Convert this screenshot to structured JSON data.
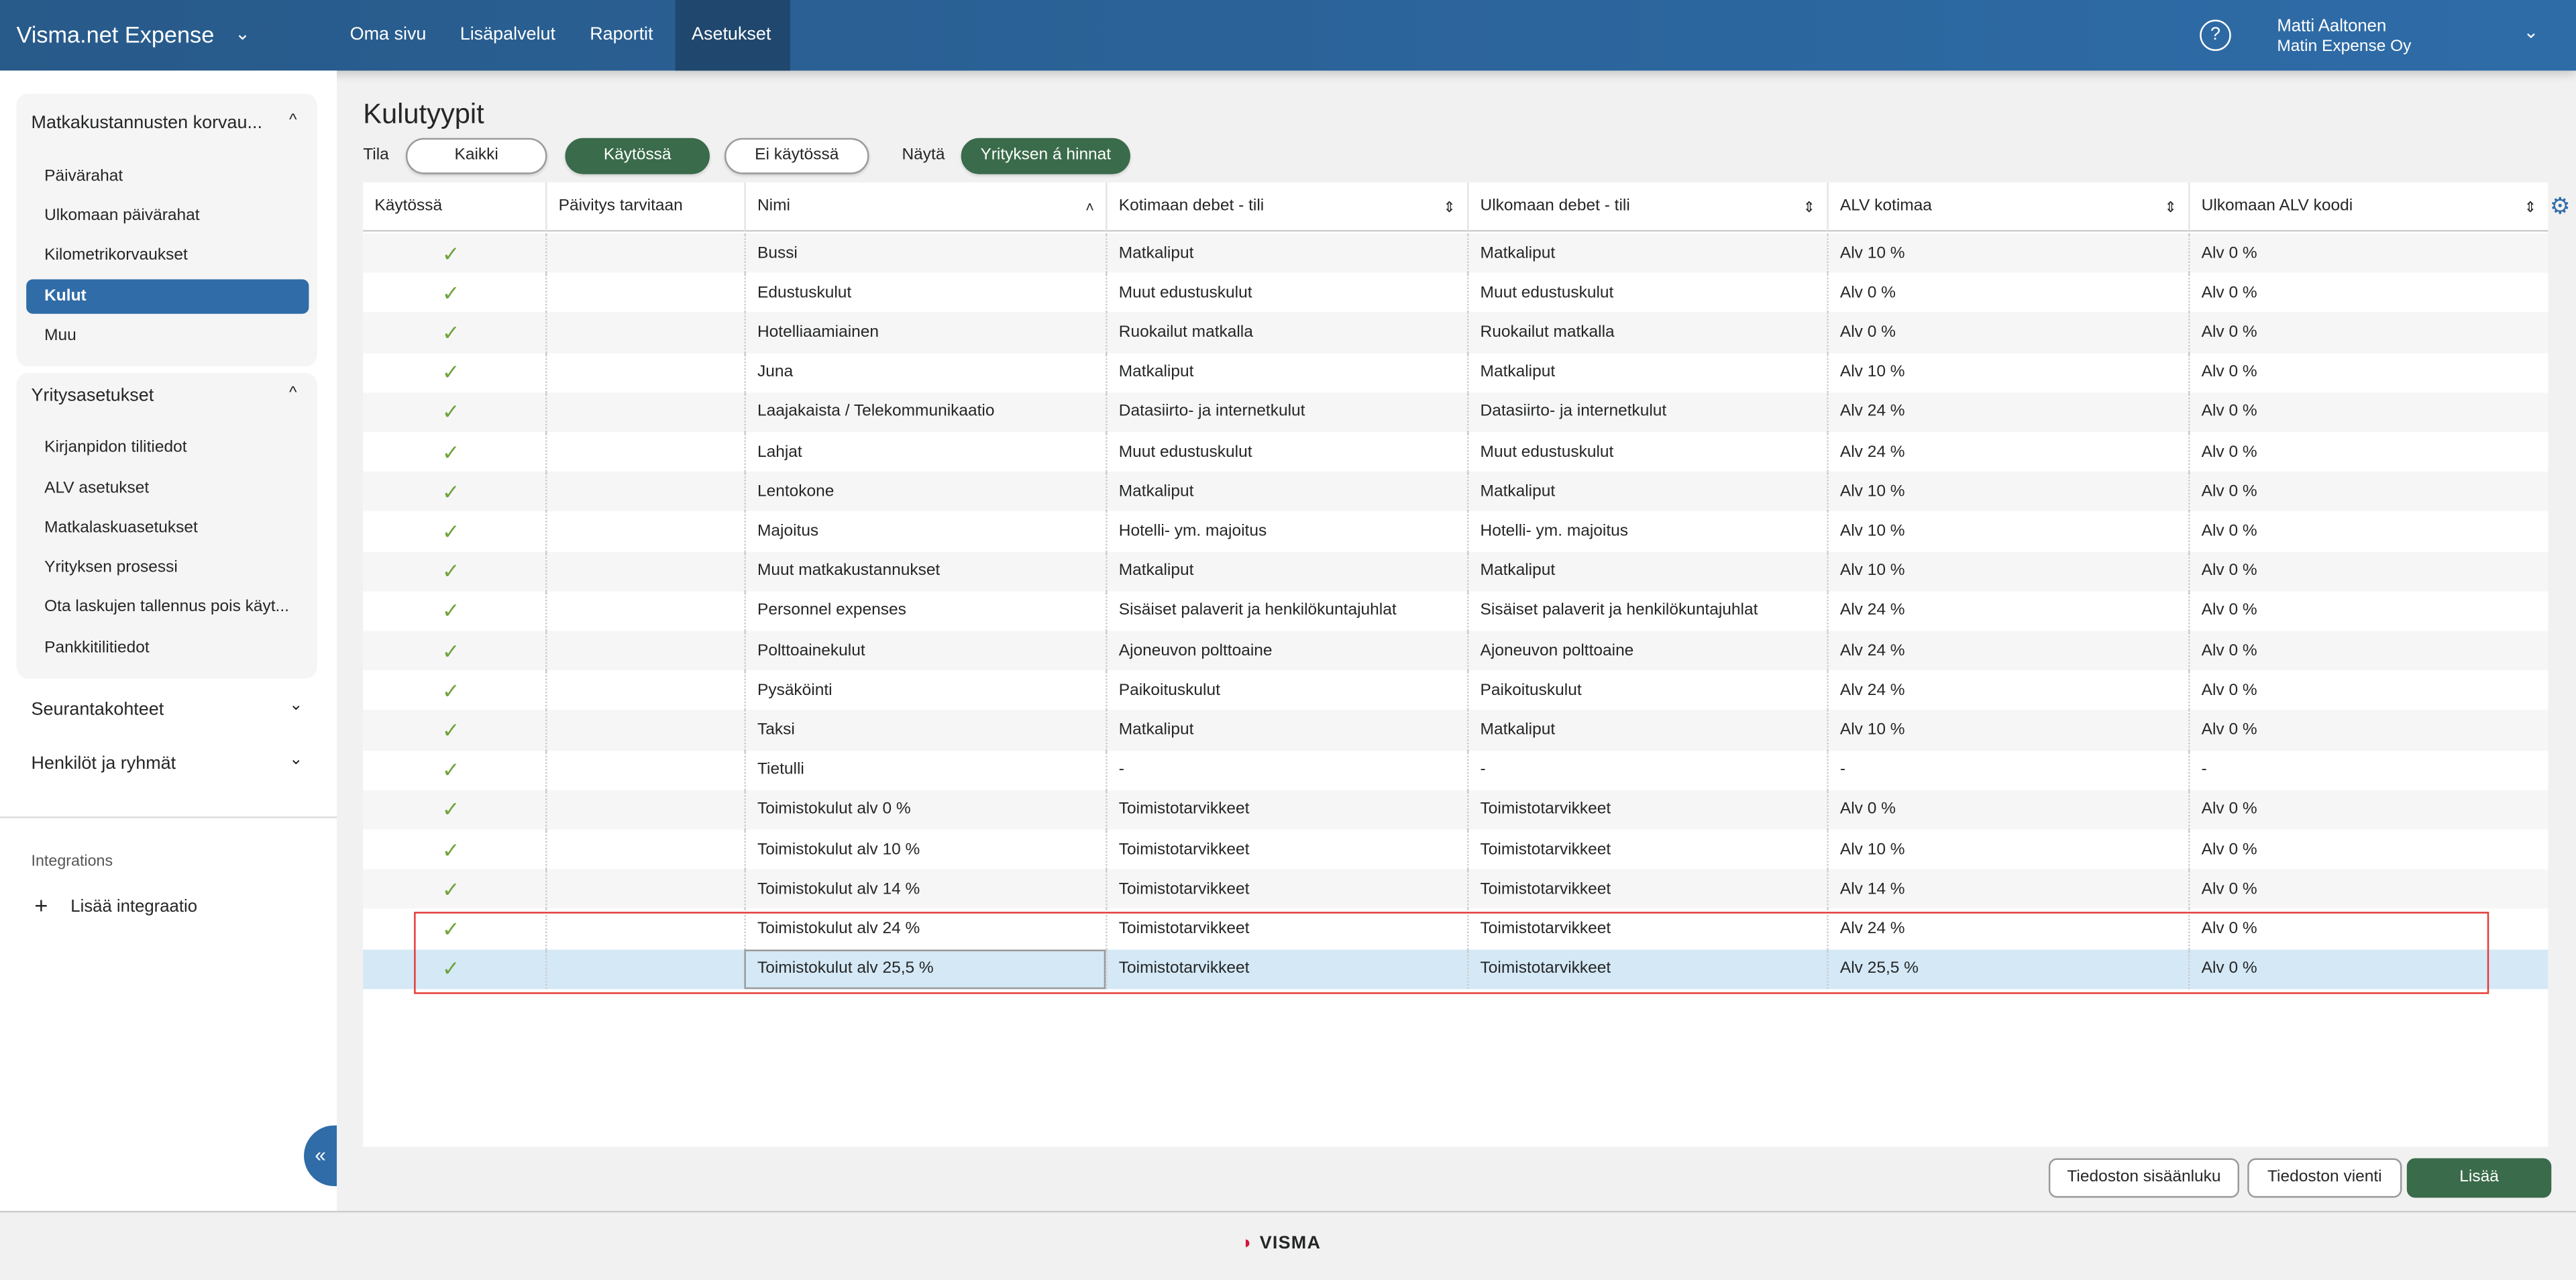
{
  "header": {
    "brand": "Visma.net Expense",
    "nav": [
      "Oma sivu",
      "Lisäpalvelut",
      "Raportit",
      "Asetukset"
    ],
    "active_nav": "Asetukset",
    "user_name": "Matti Aaltonen",
    "company": "Matin Expense Oy",
    "brand_color": "#2a5f91"
  },
  "sidebar": {
    "groups": [
      {
        "title": "Matkakustannusten korvau...",
        "expanded": true,
        "items": [
          "Päivärahat",
          "Ulkomaan päivärahat",
          "Kilometrikorvaukset",
          "Kulut",
          "Muu"
        ],
        "active": "Kulut"
      },
      {
        "title": "Yritysasetukset",
        "expanded": true,
        "items": [
          "Kirjanpidon tilitiedot",
          "ALV asetukset",
          "Matkalaskuasetukset",
          "Yrityksen prosessi",
          "Ota laskujen tallennus pois käyt...",
          "Pankkitilitiedot"
        ]
      },
      {
        "title": "Seurantakohteet",
        "expanded": false
      },
      {
        "title": "Henkilöt ja ryhmät",
        "expanded": false
      }
    ],
    "integrations_label": "Integrations",
    "add_integration": "Lisää integraatio"
  },
  "main": {
    "title": "Kulutyypit",
    "filter": {
      "tila_label": "Tila",
      "options": [
        "Kaikki",
        "Käytössä",
        "Ei käytössä"
      ],
      "selected": "Käytössä",
      "nayta_label": "Näytä",
      "nayta_toggle": "Yrityksen á hinnat"
    },
    "table": {
      "columns": [
        "Käytössä",
        "Päivitys tarvitaan",
        "Nimi",
        "Kotimaan debet - tili",
        "Ulkomaan debet - tili",
        "ALV kotimaa",
        "Ulkomaan ALV koodi"
      ],
      "rows": [
        [
          "Bussi",
          "Matkaliput",
          "Matkaliput",
          "Alv 10 %",
          "Alv 0 %"
        ],
        [
          "Edustuskulut",
          "Muut edustuskulut",
          "Muut edustuskulut",
          "Alv 0 %",
          "Alv 0 %"
        ],
        [
          "Hotelliaamiainen",
          "Ruokailut matkalla",
          "Ruokailut matkalla",
          "Alv 0 %",
          "Alv 0 %"
        ],
        [
          "Juna",
          "Matkaliput",
          "Matkaliput",
          "Alv 10 %",
          "Alv 0 %"
        ],
        [
          "Laajakaista / Telekommunikaatio",
          "Datasiirto- ja internetkulut",
          "Datasiirto- ja internetkulut",
          "Alv 24 %",
          "Alv 0 %"
        ],
        [
          "Lahjat",
          "Muut edustuskulut",
          "Muut edustuskulut",
          "Alv 24 %",
          "Alv 0 %"
        ],
        [
          "Lentokone",
          "Matkaliput",
          "Matkaliput",
          "Alv 10 %",
          "Alv 0 %"
        ],
        [
          "Majoitus",
          "Hotelli- ym. majoitus",
          "Hotelli- ym. majoitus",
          "Alv 10 %",
          "Alv 0 %"
        ],
        [
          "Muut matkakustannukset",
          "Matkaliput",
          "Matkaliput",
          "Alv 10 %",
          "Alv 0 %"
        ],
        [
          "Personnel expenses",
          "Sisäiset palaverit ja henkilökuntajuhlat",
          "Sisäiset palaverit ja henkilökuntajuhlat",
          "Alv 24 %",
          "Alv 0 %"
        ],
        [
          "Polttoainekulut",
          "Ajoneuvon polttoaine",
          "Ajoneuvon polttoaine",
          "Alv 24 %",
          "Alv 0 %"
        ],
        [
          "Pysäköinti",
          "Paikoituskulut",
          "Paikoituskulut",
          "Alv 24 %",
          "Alv 0 %"
        ],
        [
          "Taksi",
          "Matkaliput",
          "Matkaliput",
          "Alv 10 %",
          "Alv 0 %"
        ],
        [
          "Tietulli",
          "-",
          "-",
          "-",
          "-"
        ],
        [
          "Toimistokulut alv 0 %",
          "Toimistotarvikkeet",
          "Toimistotarvikkeet",
          "Alv 0 %",
          "Alv 0 %"
        ],
        [
          "Toimistokulut alv 10 %",
          "Toimistotarvikkeet",
          "Toimistotarvikkeet",
          "Alv 10 %",
          "Alv 0 %"
        ],
        [
          "Toimistokulut alv 14 %",
          "Toimistotarvikkeet",
          "Toimistotarvikkeet",
          "Alv 14 %",
          "Alv 0 %"
        ],
        [
          "Toimistokulut alv 24 %",
          "Toimistotarvikkeet",
          "Toimistotarvikkeet",
          "Alv 24 %",
          "Alv 0 %"
        ],
        [
          "Toimistokulut alv 25,5 %",
          "Toimistotarvikkeet",
          "Toimistotarvikkeet",
          "Alv 25,5 %",
          "Alv 0 %"
        ]
      ],
      "selected_row": "Toimistokulut alv 25,5 %"
    },
    "buttons": {
      "import": "Tiedoston sisäänluku",
      "export": "Tiedoston vienti",
      "add": "Lisää"
    }
  },
  "footer": {
    "logo": "VISMA"
  },
  "colors": {
    "green": "#3a6b4a",
    "active_blue": "#2f6ca8",
    "selected_row": "#d4e8f6",
    "highlight": "#e53935",
    "check": "#6ea33a"
  }
}
